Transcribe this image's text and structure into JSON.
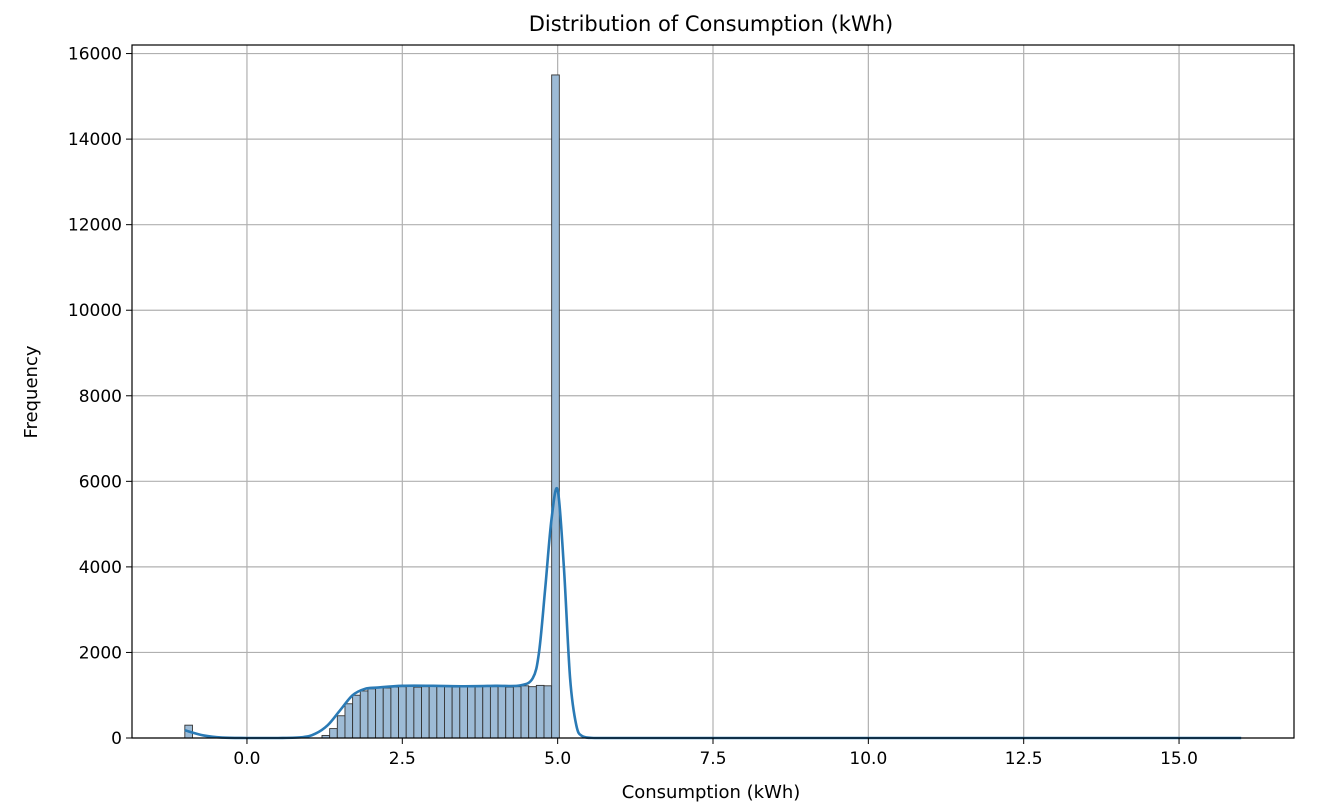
{
  "chart_data": {
    "type": "bar",
    "title": "Distribution of Consumption (kWh)",
    "xlabel": "Consumption (kWh)",
    "ylabel": "Frequency",
    "xlim": [
      -1.85,
      16.85
    ],
    "ylim": [
      0,
      16200
    ],
    "xticks": [
      0.0,
      2.5,
      5.0,
      7.5,
      10.0,
      12.5,
      15.0
    ],
    "xtick_labels": [
      "0.0",
      "2.5",
      "5.0",
      "7.5",
      "10.0",
      "12.5",
      "15.0"
    ],
    "yticks": [
      0,
      2000,
      4000,
      6000,
      8000,
      10000,
      12000,
      14000,
      16000
    ],
    "ytick_labels": [
      "0",
      "2000",
      "4000",
      "6000",
      "8000",
      "10000",
      "12000",
      "14000",
      "16000"
    ],
    "grid": true,
    "colors": {
      "bar_fill": "#9dbbd6",
      "bar_edge": "#333333",
      "kde_line": "#2a7ab5"
    },
    "bin_width": 0.1232,
    "bin_start": -1.0,
    "bins": [
      {
        "x": -1.0,
        "count": 300
      },
      {
        "x": 1.2076,
        "count": 60
      },
      {
        "x": 1.3308,
        "count": 220
      },
      {
        "x": 1.454,
        "count": 520
      },
      {
        "x": 1.5772,
        "count": 800
      },
      {
        "x": 1.7004,
        "count": 1000
      },
      {
        "x": 1.8236,
        "count": 1100
      },
      {
        "x": 1.9468,
        "count": 1150
      },
      {
        "x": 2.07,
        "count": 1180
      },
      {
        "x": 2.1932,
        "count": 1170
      },
      {
        "x": 2.3164,
        "count": 1190
      },
      {
        "x": 2.4396,
        "count": 1200
      },
      {
        "x": 2.5628,
        "count": 1210
      },
      {
        "x": 2.686,
        "count": 1190
      },
      {
        "x": 2.8092,
        "count": 1200
      },
      {
        "x": 2.9324,
        "count": 1210
      },
      {
        "x": 3.0556,
        "count": 1220
      },
      {
        "x": 3.1788,
        "count": 1200
      },
      {
        "x": 3.302,
        "count": 1190
      },
      {
        "x": 3.4252,
        "count": 1210
      },
      {
        "x": 3.5484,
        "count": 1200
      },
      {
        "x": 3.6716,
        "count": 1210
      },
      {
        "x": 3.7948,
        "count": 1220
      },
      {
        "x": 3.918,
        "count": 1200
      },
      {
        "x": 4.0412,
        "count": 1210
      },
      {
        "x": 4.1644,
        "count": 1190
      },
      {
        "x": 4.2876,
        "count": 1200
      },
      {
        "x": 4.4108,
        "count": 1220
      },
      {
        "x": 4.534,
        "count": 1200
      },
      {
        "x": 4.6572,
        "count": 1230
      },
      {
        "x": 4.7804,
        "count": 1220
      },
      {
        "x": 4.9036,
        "count": 15500
      }
    ],
    "kde": {
      "x": [
        -1.0,
        -0.7,
        -0.4,
        0.0,
        0.5,
        0.9,
        1.1,
        1.3,
        1.5,
        1.7,
        1.9,
        2.1,
        2.5,
        3.0,
        3.5,
        4.0,
        4.4,
        4.6,
        4.7,
        4.8,
        4.9,
        5.0,
        5.1,
        5.2,
        5.3,
        5.4,
        5.6,
        6.0,
        8.0,
        12.0,
        16.0
      ],
      "y": [
        180,
        60,
        10,
        0,
        0,
        20,
        100,
        300,
        650,
        1000,
        1150,
        1180,
        1220,
        1220,
        1210,
        1220,
        1230,
        1400,
        2000,
        3500,
        5100,
        5800,
        4000,
        1400,
        300,
        40,
        0,
        0,
        0,
        0,
        0
      ]
    }
  }
}
